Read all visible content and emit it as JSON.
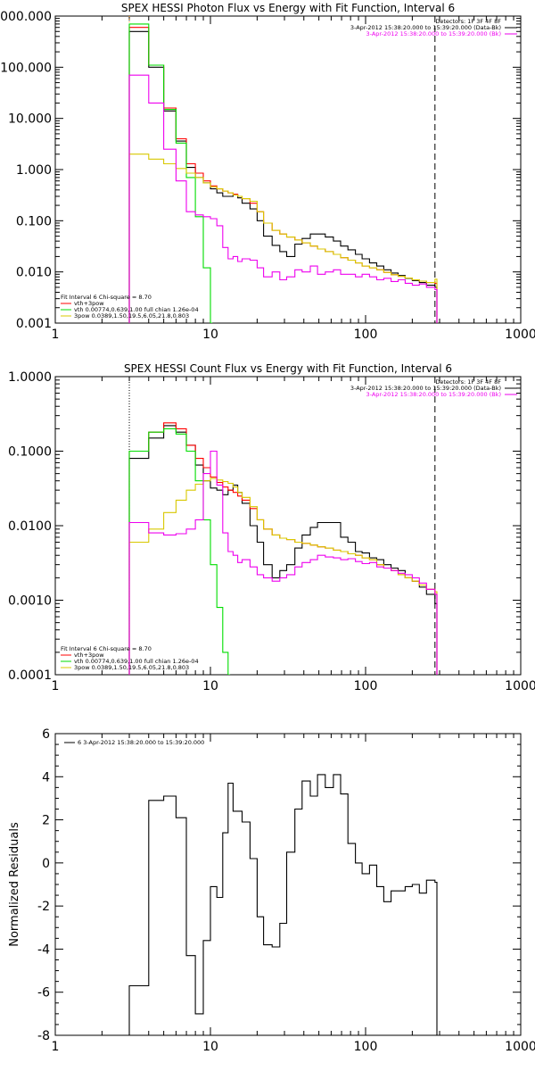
{
  "colors": {
    "black": "#000000",
    "red": "#ff0000",
    "green": "#00dd00",
    "magenta": "#ee00ee",
    "yellow": "#d8c800",
    "orange": "#ff8c00"
  },
  "chart_data": [
    {
      "type": "line",
      "title": "SPEX HESSI Photon Flux vs Energy with Fit Function, Interval 6",
      "xscale": "log",
      "yscale": "log",
      "xlim": [
        1,
        1000
      ],
      "ylim": [
        0.001,
        1000
      ],
      "x_ticks": [
        "1",
        "10",
        "100",
        "1000"
      ],
      "y_ticks": [
        "0.001",
        "0.010",
        "0.100",
        "1.000",
        "10.000",
        "100.000",
        "1000.000"
      ],
      "y_ticks_visible": [
        "0.001",
        "0.010",
        "0.100",
        "1.000",
        "10.000",
        "100.000",
        "000.000"
      ],
      "legend_top_right": [
        {
          "text": "Detectors: 1F 3F 4F 8F",
          "color": "#000000"
        },
        {
          "text": "3-Apr-2012 15:38:20.000 to 15:39:20.000 (Data-Bk)",
          "color": "#000000"
        },
        {
          "text": "3-Apr-2012 15:38:20.000 to 15:39:20.000 (Bk)",
          "color": "#ee00ee"
        }
      ],
      "legend_bottom_left": [
        {
          "text": "Fit Interval 6   Chi-square = 8.70",
          "color": "#000000"
        },
        {
          "text": "vth+3pow",
          "color": "#ff0000"
        },
        {
          "text": "vth 0.00774,0.639,1.00  full chian 1.26e-04",
          "color": "#00dd00"
        },
        {
          "text": "3pow 0.0389,1.50,19.5,6.05,21.8,0.803",
          "color": "#d8c800"
        }
      ],
      "vlines": [
        {
          "x": 3,
          "style": "dotted",
          "color": "#ff8c00"
        },
        {
          "x": 280,
          "style": "dashed",
          "color": "#000000"
        }
      ],
      "series": [
        {
          "name": "Data-Bk",
          "color": "#000000",
          "x": [
            3,
            4,
            5,
            6,
            7,
            8,
            9,
            10,
            11,
            12,
            13,
            14,
            15,
            16,
            18,
            20,
            22,
            25,
            28,
            31,
            35,
            39,
            44,
            49,
            55,
            62,
            69,
            77,
            86,
            95,
            106,
            118,
            131,
            146,
            162,
            180,
            200,
            222,
            247,
            280
          ],
          "y": [
            500,
            100,
            14,
            3.6,
            1.1,
            0.7,
            0.55,
            0.42,
            0.35,
            0.3,
            0.3,
            0.32,
            0.28,
            0.22,
            0.17,
            0.1,
            0.05,
            0.033,
            0.025,
            0.02,
            0.035,
            0.045,
            0.055,
            0.055,
            0.048,
            0.04,
            0.032,
            0.027,
            0.022,
            0.018,
            0.015,
            0.013,
            0.011,
            0.0095,
            0.0085,
            0.0075,
            0.0068,
            0.0062,
            0.0055,
            0.005
          ]
        },
        {
          "name": "vth+3pow",
          "color": "#ff0000",
          "x": [
            3,
            4,
            5,
            6,
            7,
            8,
            9,
            10,
            11,
            12,
            13,
            14,
            15,
            16,
            18,
            20,
            22,
            25,
            28,
            31,
            35,
            39,
            44,
            49,
            55,
            62,
            69,
            77,
            86,
            95,
            106,
            118,
            131,
            146,
            162,
            180,
            200,
            222,
            247,
            280
          ],
          "y": [
            600,
            110,
            16,
            4,
            1.3,
            0.85,
            0.6,
            0.48,
            0.42,
            0.38,
            0.35,
            0.33,
            0.3,
            0.27,
            0.22,
            0.15,
            0.09,
            0.065,
            0.055,
            0.048,
            0.042,
            0.037,
            0.032,
            0.028,
            0.025,
            0.022,
            0.019,
            0.017,
            0.015,
            0.013,
            0.012,
            0.011,
            0.0098,
            0.0088,
            0.0082,
            0.0076,
            0.007,
            0.0066,
            0.0062,
            0.006
          ]
        },
        {
          "name": "vth",
          "color": "#00dd00",
          "x": [
            3,
            4,
            5,
            6,
            7,
            8,
            9,
            10
          ],
          "y": [
            700,
            110,
            15,
            3.3,
            0.7,
            0.12,
            0.012,
            0.001
          ]
        },
        {
          "name": "3pow",
          "color": "#d8c800",
          "x": [
            3,
            4,
            5,
            6,
            7,
            8,
            9,
            10,
            11,
            12,
            13,
            14,
            15,
            16,
            18,
            20,
            22,
            25,
            28,
            31,
            35,
            39,
            44,
            49,
            55,
            62,
            69,
            77,
            86,
            95,
            106,
            118,
            131,
            146,
            162,
            180,
            200,
            222,
            247,
            280
          ],
          "y": [
            2,
            1.6,
            1.3,
            1.05,
            0.85,
            0.7,
            0.55,
            0.46,
            0.42,
            0.38,
            0.35,
            0.32,
            0.3,
            0.27,
            0.24,
            0.15,
            0.09,
            0.065,
            0.055,
            0.048,
            0.042,
            0.037,
            0.032,
            0.028,
            0.025,
            0.022,
            0.019,
            0.017,
            0.015,
            0.013,
            0.012,
            0.011,
            0.0098,
            0.0088,
            0.0082,
            0.0076,
            0.007,
            0.0066,
            0.0062,
            0.0072
          ]
        },
        {
          "name": "Bk",
          "color": "#ee00ee",
          "x": [
            3,
            4,
            5,
            6,
            7,
            8,
            9,
            10,
            11,
            12,
            13,
            14,
            15,
            16,
            18,
            20,
            22,
            25,
            28,
            31,
            35,
            39,
            44,
            49,
            55,
            62,
            69,
            77,
            86,
            95,
            106,
            118,
            131,
            146,
            162,
            180,
            200,
            222,
            247,
            280
          ],
          "y": [
            70,
            20,
            2.5,
            0.6,
            0.15,
            0.13,
            0.12,
            0.11,
            0.08,
            0.03,
            0.018,
            0.02,
            0.016,
            0.018,
            0.017,
            0.012,
            0.008,
            0.01,
            0.007,
            0.008,
            0.011,
            0.01,
            0.013,
            0.009,
            0.01,
            0.011,
            0.009,
            0.009,
            0.008,
            0.009,
            0.008,
            0.007,
            0.0075,
            0.0065,
            0.007,
            0.006,
            0.0055,
            0.0058,
            0.005,
            0.0045
          ]
        }
      ]
    },
    {
      "type": "line",
      "title": "SPEX HESSI Count Flux vs Energy with Fit Function, Interval 6",
      "xscale": "log",
      "yscale": "log",
      "xlim": [
        1,
        1000
      ],
      "ylim": [
        0.0001,
        1
      ],
      "x_ticks": [
        "1",
        "10",
        "100",
        "1000"
      ],
      "y_ticks": [
        "0.0001",
        "0.0010",
        "0.0100",
        "0.1000",
        "1.0000"
      ],
      "legend_top_right": [
        {
          "text": "Detectors: 1F 3F 4F 8F",
          "color": "#000000"
        },
        {
          "text": "3-Apr-2012 15:38:20.000 to 15:39:20.000 (Data-Bk)",
          "color": "#000000"
        },
        {
          "text": "3-Apr-2012 15:38:20.000 to 15:39:20.000 (Bk)",
          "color": "#ee00ee"
        }
      ],
      "legend_bottom_left": [
        {
          "text": "Fit Interval 6   Chi-square = 8.70",
          "color": "#000000"
        },
        {
          "text": "vth+3pow",
          "color": "#ff0000"
        },
        {
          "text": "vth 0.00774,0.639,1.00  full chian 1.26e-04",
          "color": "#00dd00"
        },
        {
          "text": "3pow 0.0389,1.50,19.5,6.05,21.8,0.803",
          "color": "#d8c800"
        }
      ],
      "vlines": [
        {
          "x": 3,
          "style": "dotted",
          "color": "#000000"
        },
        {
          "x": 280,
          "style": "dashed",
          "color": "#000000"
        }
      ],
      "series": [
        {
          "name": "Data-Bk",
          "color": "#000000",
          "x": [
            3,
            4,
            5,
            6,
            7,
            8,
            9,
            10,
            11,
            12,
            13,
            14,
            15,
            16,
            18,
            20,
            22,
            25,
            28,
            31,
            35,
            39,
            44,
            49,
            55,
            62,
            69,
            77,
            86,
            95,
            106,
            118,
            131,
            146,
            162,
            180,
            200,
            222,
            247,
            280
          ],
          "y": [
            0.08,
            0.15,
            0.22,
            0.18,
            0.12,
            0.065,
            0.04,
            0.032,
            0.03,
            0.026,
            0.03,
            0.035,
            0.028,
            0.02,
            0.01,
            0.006,
            0.003,
            0.002,
            0.0025,
            0.003,
            0.005,
            0.0075,
            0.0095,
            0.011,
            0.011,
            0.011,
            0.007,
            0.006,
            0.0045,
            0.0043,
            0.0037,
            0.0035,
            0.003,
            0.0027,
            0.0025,
            0.002,
            0.0018,
            0.0015,
            0.0012,
            0.0009
          ]
        },
        {
          "name": "vth+3pow",
          "color": "#ff0000",
          "x": [
            3,
            4,
            5,
            6,
            7,
            8,
            9,
            10,
            11,
            12,
            13,
            14,
            15,
            16,
            18,
            20,
            22,
            25,
            28,
            31,
            35,
            39,
            44,
            49,
            55,
            62,
            69,
            77,
            86,
            95,
            106,
            118,
            131,
            146,
            162,
            180,
            200,
            222,
            247,
            280
          ],
          "y": [
            0.1,
            0.18,
            0.24,
            0.2,
            0.12,
            0.08,
            0.06,
            0.045,
            0.038,
            0.033,
            0.03,
            0.028,
            0.025,
            0.022,
            0.017,
            0.012,
            0.009,
            0.0075,
            0.0068,
            0.0065,
            0.006,
            0.0058,
            0.0055,
            0.0052,
            0.005,
            0.0047,
            0.0045,
            0.0042,
            0.004,
            0.0037,
            0.0035,
            0.003,
            0.0027,
            0.0025,
            0.0022,
            0.002,
            0.0018,
            0.0016,
            0.0014,
            0.0012
          ]
        },
        {
          "name": "vth",
          "color": "#00dd00",
          "x": [
            3,
            4,
            5,
            6,
            7,
            8,
            9,
            10,
            11,
            12,
            13
          ],
          "y": [
            0.1,
            0.18,
            0.2,
            0.17,
            0.1,
            0.04,
            0.012,
            0.003,
            0.0008,
            0.0002,
            0.0001
          ]
        },
        {
          "name": "3pow",
          "color": "#d8c800",
          "x": [
            3,
            4,
            5,
            6,
            7,
            8,
            9,
            10,
            11,
            12,
            13,
            14,
            15,
            16,
            18,
            20,
            22,
            25,
            28,
            31,
            35,
            39,
            44,
            49,
            55,
            62,
            69,
            77,
            86,
            95,
            106,
            118,
            131,
            146,
            162,
            180,
            200,
            222,
            247,
            280
          ],
          "y": [
            0.006,
            0.009,
            0.015,
            0.022,
            0.03,
            0.036,
            0.04,
            0.043,
            0.041,
            0.039,
            0.037,
            0.033,
            0.028,
            0.024,
            0.018,
            0.012,
            0.009,
            0.0075,
            0.0068,
            0.0065,
            0.006,
            0.0058,
            0.0055,
            0.0052,
            0.005,
            0.0047,
            0.0045,
            0.0042,
            0.004,
            0.0037,
            0.0035,
            0.003,
            0.0027,
            0.0025,
            0.0022,
            0.002,
            0.0018,
            0.0016,
            0.0014,
            0.0013
          ]
        },
        {
          "name": "Bk",
          "color": "#ee00ee",
          "x": [
            3,
            4,
            5,
            6,
            7,
            8,
            9,
            10,
            11,
            12,
            13,
            14,
            15,
            16,
            18,
            20,
            22,
            25,
            28,
            31,
            35,
            39,
            44,
            49,
            55,
            62,
            69,
            77,
            86,
            95,
            106,
            118,
            131,
            146,
            162,
            180,
            200,
            222,
            247,
            280
          ],
          "y": [
            0.011,
            0.008,
            0.0075,
            0.0078,
            0.009,
            0.012,
            0.05,
            0.1,
            0.035,
            0.008,
            0.0045,
            0.004,
            0.0032,
            0.0035,
            0.0028,
            0.0022,
            0.002,
            0.0018,
            0.002,
            0.0022,
            0.0028,
            0.0032,
            0.0035,
            0.004,
            0.0038,
            0.0037,
            0.0035,
            0.0036,
            0.0033,
            0.0031,
            0.0032,
            0.0028,
            0.0027,
            0.0025,
            0.0023,
            0.0022,
            0.002,
            0.0017,
            0.0014,
            0.0012
          ]
        }
      ]
    },
    {
      "type": "line",
      "title": "",
      "xscale": "log",
      "yscale": "linear",
      "xlim": [
        1,
        1000
      ],
      "ylim": [
        -8,
        6
      ],
      "x_ticks": [
        "1",
        "10",
        "100",
        "1000"
      ],
      "y_ticks": [
        "-8",
        "-6",
        "-4",
        "-2",
        "0",
        "2",
        "4",
        "6"
      ],
      "ylabel": "Normalized Residuals",
      "legend_top_left": [
        {
          "text": "6  3-Apr-2012 15:38:20.000 to 15:39:20.000",
          "color": "#000000"
        }
      ],
      "series": [
        {
          "name": "6",
          "color": "#000000",
          "x": [
            3,
            4,
            5,
            6,
            7,
            8,
            9,
            10,
            11,
            12,
            13,
            14,
            15,
            16,
            18,
            20,
            22,
            25,
            28,
            31,
            35,
            39,
            44,
            49,
            55,
            62,
            69,
            77,
            86,
            95,
            106,
            118,
            131,
            146,
            162,
            180,
            200,
            222,
            247,
            280
          ],
          "y": [
            -5.7,
            2.9,
            3.1,
            2.1,
            -4.3,
            -7,
            -3.6,
            -1.1,
            -1.6,
            1.4,
            3.7,
            2.4,
            2.4,
            1.9,
            0.2,
            -2.5,
            -3.8,
            -3.9,
            -2.8,
            0.5,
            2.5,
            3.8,
            3.1,
            4.1,
            3.5,
            4.1,
            3.2,
            0.9,
            0,
            -0.5,
            -0.1,
            -1.1,
            -1.8,
            -1.3,
            -1.3,
            -1.1,
            -1.0,
            -1.4,
            -0.8,
            -0.9
          ]
        }
      ]
    }
  ]
}
